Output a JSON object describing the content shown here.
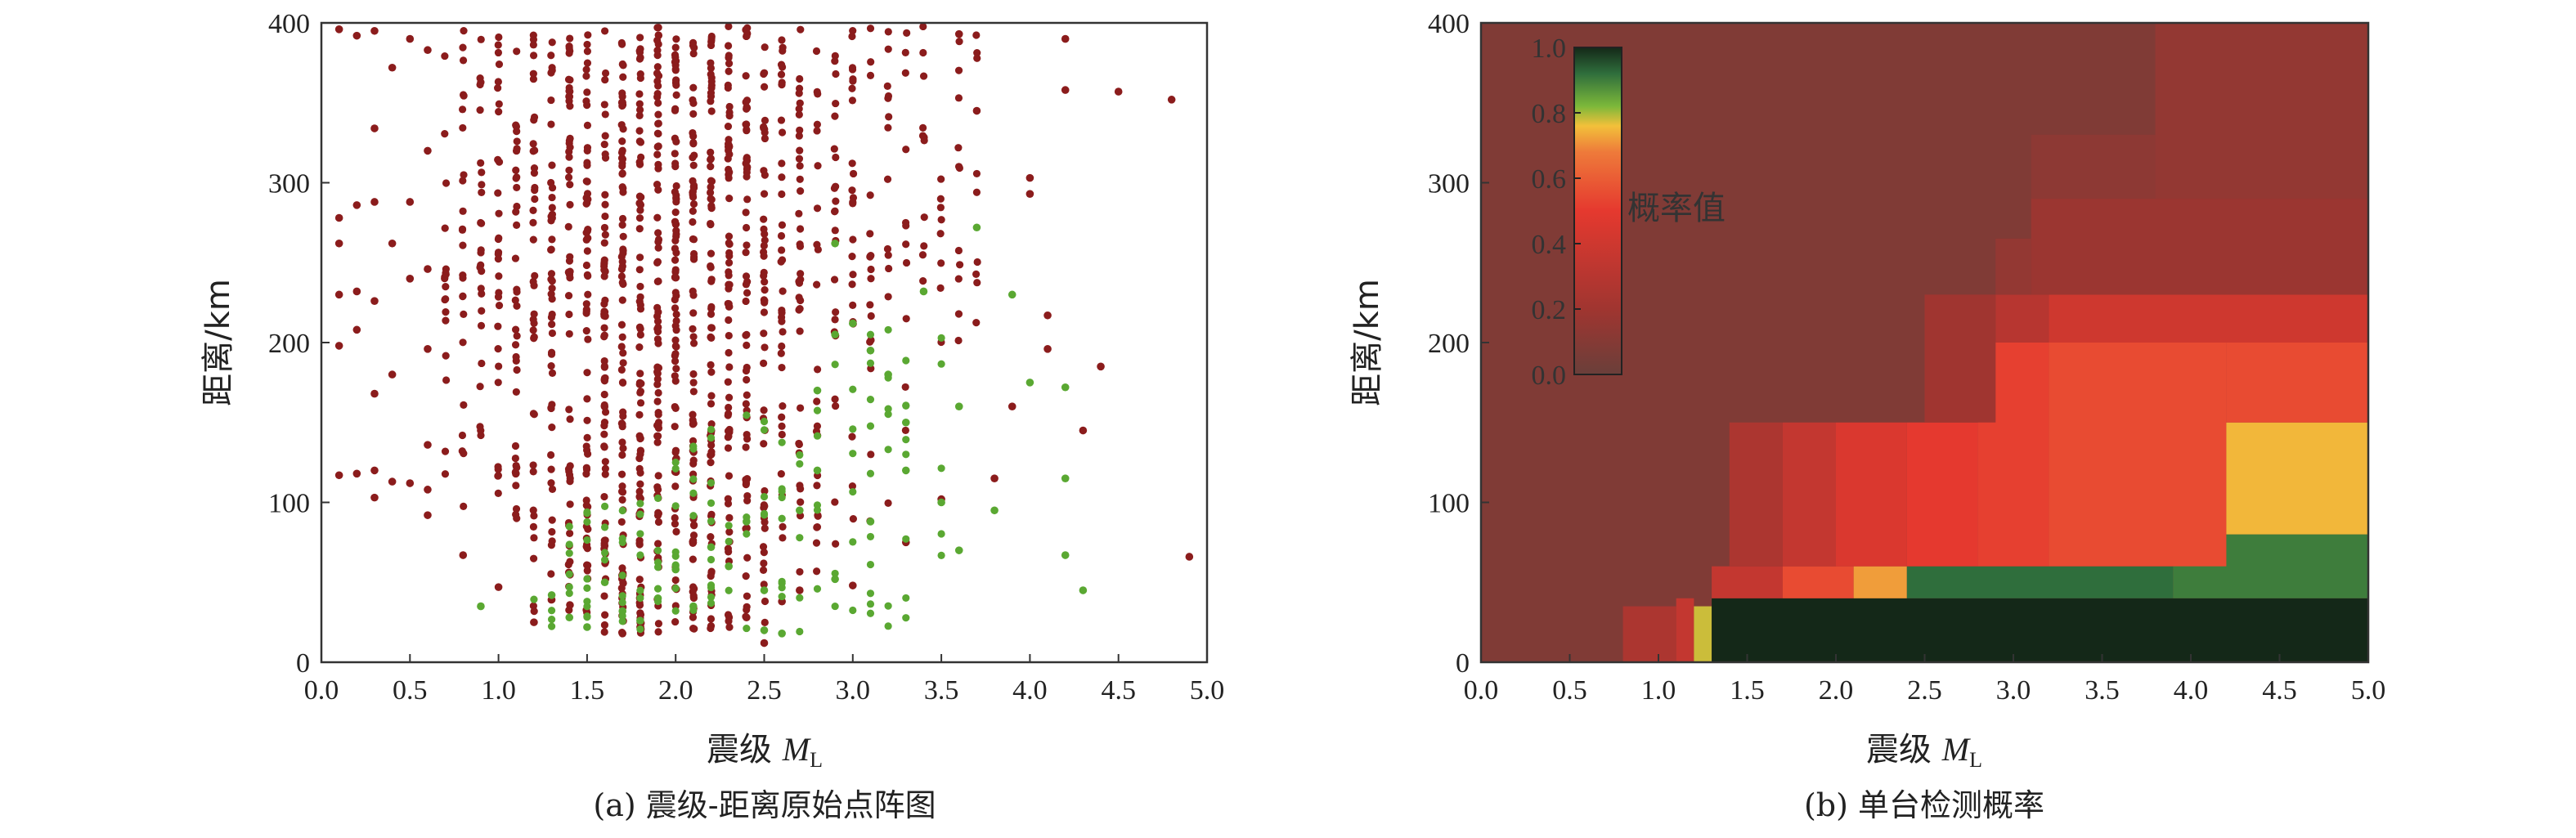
{
  "chart_data": [
    {
      "type": "scatter",
      "xlabel": "震级",
      "xlabel_symbol": "M",
      "xlabel_subscript": "L",
      "ylabel": "距离/km",
      "xlim": [
        0.0,
        5.0
      ],
      "ylim": [
        0,
        400
      ],
      "xticks": [
        "0.0",
        "0.5",
        "1.0",
        "1.5",
        "2.0",
        "2.5",
        "3.0",
        "3.5",
        "4.0",
        "4.5",
        "5.0"
      ],
      "yticks": [
        "0",
        "100",
        "200",
        "300",
        "400"
      ],
      "caption": "(a) 震级-距离原始点阵图",
      "colors": {
        "undetected": "#8b1c1c",
        "detected": "#5aa832"
      },
      "series": [
        {
          "category": "undetected",
          "points": [
            [
              0.1,
              117
            ],
            [
              0.1,
              198
            ],
            [
              0.1,
              230
            ],
            [
              0.1,
              262
            ],
            [
              0.1,
              278
            ],
            [
              0.1,
              396
            ],
            [
              0.2,
              118
            ],
            [
              0.2,
              208
            ],
            [
              0.2,
              232
            ],
            [
              0.2,
              286
            ],
            [
              0.2,
              392
            ],
            [
              0.3,
              103
            ],
            [
              0.3,
              120
            ],
            [
              0.3,
              168
            ],
            [
              0.3,
              226
            ],
            [
              0.3,
              288
            ],
            [
              0.3,
              334
            ],
            [
              0.3,
              395
            ],
            [
              0.4,
              113
            ],
            [
              0.4,
              180
            ],
            [
              0.4,
              262
            ],
            [
              0.4,
              372
            ],
            [
              0.5,
              112
            ],
            [
              0.5,
              240
            ],
            [
              0.5,
              288
            ],
            [
              0.5,
              390
            ],
            [
              0.6,
              92
            ],
            [
              0.6,
              108
            ],
            [
              0.6,
              136
            ],
            [
              0.6,
              196
            ],
            [
              0.6,
              246
            ],
            [
              0.6,
              320
            ],
            [
              0.6,
              383
            ],
            [
              0.8,
              67
            ],
            [
              1.0,
              47
            ],
            [
              1.2,
              25
            ],
            [
              4.8,
              352
            ],
            [
              4.9,
              66
            ],
            [
              4.3,
              145
            ],
            [
              4.4,
              185
            ],
            [
              4.1,
              196
            ],
            [
              4.1,
              217
            ],
            [
              4.5,
              357
            ],
            [
              4.0,
              293
            ],
            [
              4.0,
              303
            ],
            [
              3.9,
              160
            ],
            [
              4.2,
              390
            ],
            [
              4.2,
              358
            ],
            [
              3.6,
              393
            ],
            [
              3.7,
              345
            ],
            [
              1.7,
              18
            ],
            [
              1.8,
              22
            ],
            [
              2.4,
              28
            ],
            [
              2.5,
              12
            ],
            [
              2.6,
              38
            ],
            [
              2.7,
              45
            ],
            [
              3.0,
              48
            ],
            [
              3.3,
              75
            ],
            [
              3.5,
              102
            ],
            [
              3.8,
              115
            ]
          ]
        },
        {
          "category": "detected",
          "points": [
            [
              0.9,
              35
            ],
            [
              1.3,
              42
            ],
            [
              1.4,
              28
            ],
            [
              1.5,
              22
            ],
            [
              1.6,
              50
            ],
            [
              1.7,
              32
            ],
            [
              1.8,
              26
            ],
            [
              1.9,
              40
            ],
            [
              2.0,
              58
            ],
            [
              2.1,
              35
            ],
            [
              2.2,
              72
            ],
            [
              2.3,
              60
            ],
            [
              2.4,
              88
            ],
            [
              2.5,
              45
            ],
            [
              2.5,
              20
            ],
            [
              2.6,
              18
            ],
            [
              2.7,
              95
            ],
            [
              2.8,
              120
            ],
            [
              2.8,
              170
            ],
            [
              2.9,
              205
            ],
            [
              2.9,
              262
            ],
            [
              3.0,
              212
            ],
            [
              3.1,
              195
            ],
            [
              3.2,
              180
            ],
            [
              3.3,
              150
            ],
            [
              3.4,
              232
            ],
            [
              3.5,
              100
            ],
            [
              3.6,
              160
            ],
            [
              3.7,
              272
            ],
            [
              3.8,
              95
            ],
            [
              3.9,
              230
            ],
            [
              4.0,
              175
            ],
            [
              4.2,
              172
            ],
            [
              4.2,
              115
            ],
            [
              4.2,
              67
            ],
            [
              4.3,
              45
            ],
            [
              3.6,
              70
            ],
            [
              3.3,
              120
            ],
            [
              3.1,
              88
            ],
            [
              2.9,
              52
            ]
          ]
        }
      ]
    },
    {
      "type": "heatmap",
      "xlabel": "震级",
      "xlabel_symbol": "M",
      "xlabel_subscript": "L",
      "ylabel": "距离/km",
      "xlim": [
        0.0,
        5.0
      ],
      "ylim": [
        0,
        400
      ],
      "xticks": [
        "0.0",
        "0.5",
        "1.0",
        "1.5",
        "2.0",
        "2.5",
        "3.0",
        "3.5",
        "4.0",
        "4.5",
        "5.0"
      ],
      "yticks": [
        "0",
        "100",
        "200",
        "300",
        "400"
      ],
      "caption": "(b) 单台检测概率",
      "colorbar": {
        "label": "概率值",
        "ticks": [
          "1.0",
          "0.8",
          "0.6",
          "0.4",
          "0.2",
          "0.0"
        ],
        "range": [
          0.0,
          1.0
        ]
      },
      "background_probability": 0.08,
      "cells": [
        {
          "x0": 0.8,
          "x1": 1.1,
          "y0": 0,
          "y1": 35,
          "p": 0.25
        },
        {
          "x0": 1.1,
          "x1": 1.2,
          "y0": 0,
          "y1": 40,
          "p": 0.35
        },
        {
          "x0": 1.2,
          "x1": 1.3,
          "y0": 0,
          "y1": 35,
          "p": 0.78
        },
        {
          "x0": 1.3,
          "x1": 5.0,
          "y0": 0,
          "y1": 40,
          "p": 1.0
        },
        {
          "x0": 1.3,
          "x1": 1.7,
          "y0": 40,
          "y1": 60,
          "p": 0.35
        },
        {
          "x0": 1.7,
          "x1": 2.1,
          "y0": 40,
          "y1": 60,
          "p": 0.55
        },
        {
          "x0": 2.1,
          "x1": 2.4,
          "y0": 40,
          "y1": 60,
          "p": 0.72
        },
        {
          "x0": 2.4,
          "x1": 3.9,
          "y0": 40,
          "y1": 60,
          "p": 0.92
        },
        {
          "x0": 3.9,
          "x1": 5.0,
          "y0": 40,
          "y1": 80,
          "p": 0.9
        },
        {
          "x0": 1.4,
          "x1": 1.7,
          "y0": 60,
          "y1": 150,
          "p": 0.25
        },
        {
          "x0": 1.7,
          "x1": 2.0,
          "y0": 60,
          "y1": 150,
          "p": 0.35
        },
        {
          "x0": 2.0,
          "x1": 2.4,
          "y0": 60,
          "y1": 150,
          "p": 0.45
        },
        {
          "x0": 2.4,
          "x1": 2.8,
          "y0": 60,
          "y1": 150,
          "p": 0.5
        },
        {
          "x0": 2.8,
          "x1": 3.2,
          "y0": 60,
          "y1": 200,
          "p": 0.52
        },
        {
          "x0": 3.2,
          "x1": 4.2,
          "y0": 60,
          "y1": 200,
          "p": 0.55
        },
        {
          "x0": 4.2,
          "x1": 5.0,
          "y0": 80,
          "y1": 150,
          "p": 0.75
        },
        {
          "x0": 4.2,
          "x1": 5.0,
          "y0": 150,
          "y1": 200,
          "p": 0.55
        },
        {
          "x0": 2.5,
          "x1": 2.9,
          "y0": 150,
          "y1": 230,
          "p": 0.2
        },
        {
          "x0": 2.9,
          "x1": 3.2,
          "y0": 200,
          "y1": 230,
          "p": 0.3
        },
        {
          "x0": 3.2,
          "x1": 5.0,
          "y0": 200,
          "y1": 230,
          "p": 0.4
        },
        {
          "x0": 2.9,
          "x1": 3.1,
          "y0": 230,
          "y1": 265,
          "p": 0.15
        },
        {
          "x0": 3.1,
          "x1": 5.0,
          "y0": 230,
          "y1": 290,
          "p": 0.18
        },
        {
          "x0": 3.1,
          "x1": 3.8,
          "y0": 290,
          "y1": 330,
          "p": 0.13
        },
        {
          "x0": 3.8,
          "x1": 5.0,
          "y0": 290,
          "y1": 400,
          "p": 0.15
        }
      ]
    }
  ]
}
